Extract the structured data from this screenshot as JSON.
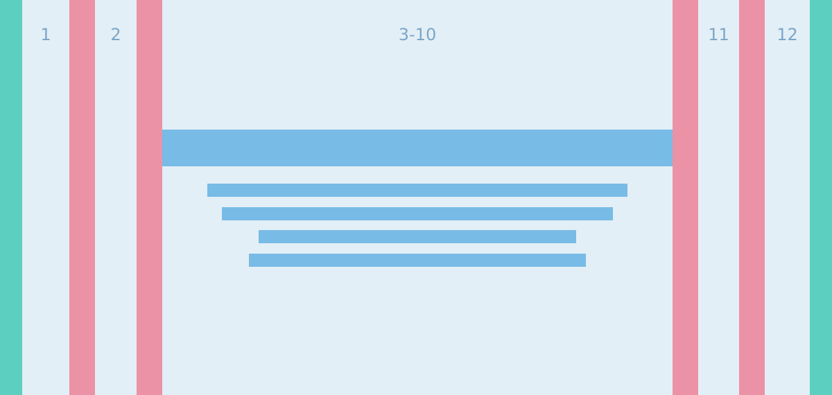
{
  "colors": {
    "background": "#e3eff6",
    "margin": "#5ccfc0",
    "gutter": "#ec92a6",
    "content": "#78bbe6",
    "label": "#7ba6c9"
  },
  "columns": {
    "col_1": "1",
    "col_2": "2",
    "col_3_10": "3-10",
    "col_11": "11",
    "col_12": "12"
  }
}
